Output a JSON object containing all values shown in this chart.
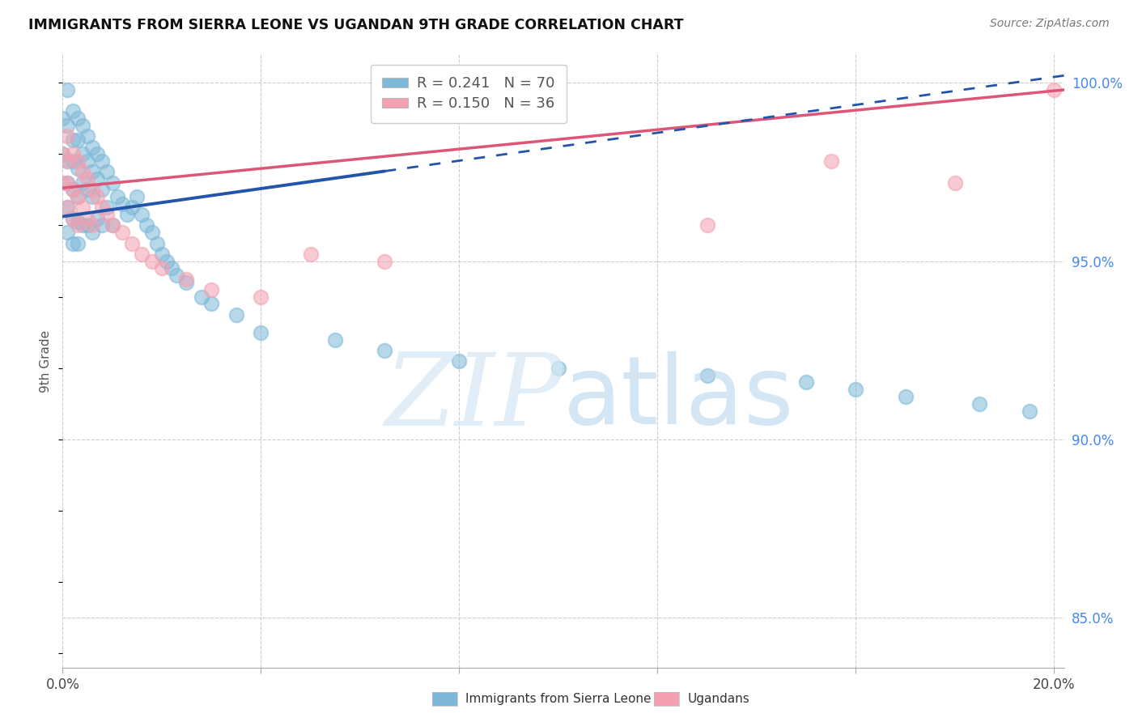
{
  "title": "IMMIGRANTS FROM SIERRA LEONE VS UGANDAN 9TH GRADE CORRELATION CHART",
  "source": "Source: ZipAtlas.com",
  "ylabel": "9th Grade",
  "legend_label1": "Immigrants from Sierra Leone",
  "legend_label2": "Ugandans",
  "R1": "0.241",
  "N1": "70",
  "R2": "0.150",
  "N2": "36",
  "color1": "#7DB8D8",
  "color2": "#F4A0B0",
  "trendline1_color": "#2255AA",
  "trendline2_color": "#DD5577",
  "xlim": [
    0.0,
    0.202
  ],
  "ylim": [
    0.836,
    1.008
  ],
  "xticks": [
    0.0,
    0.04,
    0.08,
    0.12,
    0.16,
    0.2
  ],
  "xticklabels": [
    "0.0%",
    "",
    "",
    "",
    "",
    "20.0%"
  ],
  "yticks_right": [
    0.85,
    0.9,
    0.95,
    1.0
  ],
  "ytick_labels_right": [
    "85.0%",
    "90.0%",
    "95.0%",
    "100.0%"
  ],
  "background_color": "#ffffff",
  "grid_color": "#cccccc",
  "trendline1_y0": 0.9625,
  "trendline1_y1": 1.002,
  "trendline1_solid_x_end": 0.065,
  "trendline2_y0": 0.9705,
  "trendline2_y1": 0.998,
  "blue_x": [
    0.0,
    0.0,
    0.001,
    0.001,
    0.001,
    0.001,
    0.001,
    0.001,
    0.002,
    0.002,
    0.002,
    0.002,
    0.002,
    0.002,
    0.003,
    0.003,
    0.003,
    0.003,
    0.003,
    0.003,
    0.004,
    0.004,
    0.004,
    0.004,
    0.005,
    0.005,
    0.005,
    0.005,
    0.006,
    0.006,
    0.006,
    0.006,
    0.007,
    0.007,
    0.007,
    0.008,
    0.008,
    0.008,
    0.009,
    0.009,
    0.01,
    0.01,
    0.011,
    0.012,
    0.013,
    0.014,
    0.015,
    0.016,
    0.017,
    0.018,
    0.019,
    0.02,
    0.021,
    0.022,
    0.023,
    0.025,
    0.028,
    0.03,
    0.035,
    0.04,
    0.055,
    0.065,
    0.08,
    0.1,
    0.13,
    0.15,
    0.16,
    0.17,
    0.185,
    0.195
  ],
  "blue_y": [
    0.99,
    0.98,
    0.998,
    0.988,
    0.978,
    0.972,
    0.965,
    0.958,
    0.992,
    0.984,
    0.978,
    0.97,
    0.962,
    0.955,
    0.99,
    0.984,
    0.976,
    0.968,
    0.961,
    0.955,
    0.988,
    0.98,
    0.972,
    0.96,
    0.985,
    0.978,
    0.97,
    0.96,
    0.982,
    0.975,
    0.968,
    0.958,
    0.98,
    0.973,
    0.962,
    0.978,
    0.97,
    0.96,
    0.975,
    0.965,
    0.972,
    0.96,
    0.968,
    0.966,
    0.963,
    0.965,
    0.968,
    0.963,
    0.96,
    0.958,
    0.955,
    0.952,
    0.95,
    0.948,
    0.946,
    0.944,
    0.94,
    0.938,
    0.935,
    0.93,
    0.928,
    0.925,
    0.922,
    0.92,
    0.918,
    0.916,
    0.914,
    0.912,
    0.91,
    0.908
  ],
  "pink_x": [
    0.0,
    0.0,
    0.001,
    0.001,
    0.001,
    0.001,
    0.002,
    0.002,
    0.002,
    0.003,
    0.003,
    0.003,
    0.004,
    0.004,
    0.005,
    0.005,
    0.006,
    0.006,
    0.007,
    0.008,
    0.009,
    0.01,
    0.012,
    0.014,
    0.016,
    0.018,
    0.02,
    0.025,
    0.03,
    0.04,
    0.05,
    0.065,
    0.13,
    0.155,
    0.18,
    0.2
  ],
  "pink_y": [
    0.98,
    0.972,
    0.985,
    0.978,
    0.972,
    0.965,
    0.98,
    0.97,
    0.962,
    0.978,
    0.968,
    0.96,
    0.975,
    0.965,
    0.973,
    0.962,
    0.97,
    0.96,
    0.968,
    0.965,
    0.963,
    0.96,
    0.958,
    0.955,
    0.952,
    0.95,
    0.948,
    0.945,
    0.942,
    0.94,
    0.952,
    0.95,
    0.96,
    0.978,
    0.972,
    0.998
  ]
}
